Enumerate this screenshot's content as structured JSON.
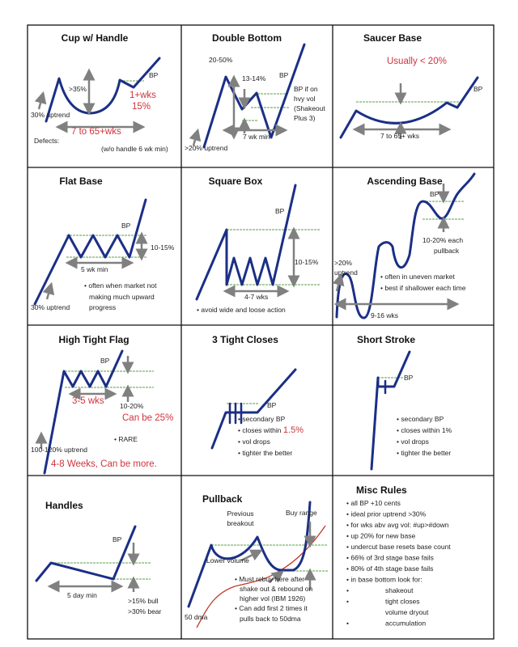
{
  "colors": {
    "price_line": "#1b2f86",
    "breakout_line": "#79b36a",
    "arrow": "#808080",
    "highlight_text": "#d0333c",
    "moving_average": "#c0392b"
  },
  "cells": {
    "cup": {
      "title": "Cup w/ Handle",
      "bp": "BP",
      "depth": ">35%",
      "handle_wks": "1+wks",
      "handle_pct": "15%",
      "uptrend": "30% uptrend",
      "duration": "7 to 65+wks",
      "defects": "Defects:",
      "no_handle": "(w/o handle 6 wk min)"
    },
    "double_bottom": {
      "title": "Double Bottom",
      "depth": "20-50%",
      "mid": "13-14%",
      "bp": "BP",
      "note": [
        "BP if on",
        "hvy vol",
        "(Shakeout",
        "Plus 3)"
      ],
      "duration": "7 wk min",
      "uptrend": ">20% uptrend"
    },
    "saucer": {
      "title": "Saucer Base",
      "depth": "Usually < 20%",
      "bp": "BP",
      "duration": "7 to 65+ wks"
    },
    "flat": {
      "title": "Flat Base",
      "bp": "BP",
      "depth": "10-15%",
      "duration": "5 wk min",
      "notes": [
        "• often when market not",
        "making much upward",
        "progress"
      ],
      "uptrend": "30% uptrend"
    },
    "square": {
      "title": "Square Box",
      "bp": "BP",
      "depth": "10-15%",
      "duration": "4-7 wks",
      "note": "• avoid wide and loose action"
    },
    "ascending": {
      "title": "Ascending Base",
      "bp": "BP",
      "pullback": [
        "10-20% each",
        "pullback"
      ],
      "uptrend": [
        ">20%",
        "uptrend"
      ],
      "notes": [
        "• often in uneven market",
        "• best if shallower each time"
      ],
      "duration": "9-16 wks"
    },
    "htf": {
      "title": "High Tight Flag",
      "bp": "BP",
      "duration": "3-5 wks",
      "depth": "10-20%",
      "depth_alt": "Can be 25%",
      "rare": "• RARE",
      "uptrend": "100-120% uptrend",
      "uptrend_time": "4-8 Weeks, Can be more."
    },
    "three_tight": {
      "title": "3 Tight Closes",
      "bp": "BP",
      "notes": [
        "• secondary BP",
        "• closes within",
        "• vol drops",
        "• tighter the better"
      ],
      "close_pct": "1.5%"
    },
    "short_stroke": {
      "title": "Short Stroke",
      "bp": "BP",
      "notes": [
        "• secondary BP",
        "• closes within 1%",
        "• vol drops",
        "• tighter the better"
      ]
    },
    "handles": {
      "title": "Handles",
      "bp": "BP",
      "duration": "5 day min",
      "depth": [
        ">15% bull",
        ">30% bear"
      ]
    },
    "pullback": {
      "title": "Pullback",
      "prev": [
        "Previous",
        "breakout"
      ],
      "buy_range": "Buy range",
      "lower_volume": "Lower volume",
      "notes": [
        "• Must rebuy here after",
        "shake out & rebound on",
        "higher vol (IBM 1926)",
        "• Can add first 2 times it",
        "pulls back to 50dma"
      ],
      "ma": "50 dma"
    },
    "misc": {
      "title": "Misc Rules",
      "rules": [
        "• all BP +10 cents",
        "• ideal prior uptrend >30%",
        "• for wks abv avg vol: #up>#down",
        "• up 20% for new base",
        "• undercut base resets base count",
        "• 66% of 3rd stage base fails",
        "• 80% of 4th stage base fails",
        "• in base bottom look for:"
      ],
      "sub": [
        "shakeout",
        "tight closes",
        "volume dryout",
        "accumulation"
      ],
      "sub_bullets": [
        "•",
        "•",
        "",
        "•"
      ]
    }
  }
}
